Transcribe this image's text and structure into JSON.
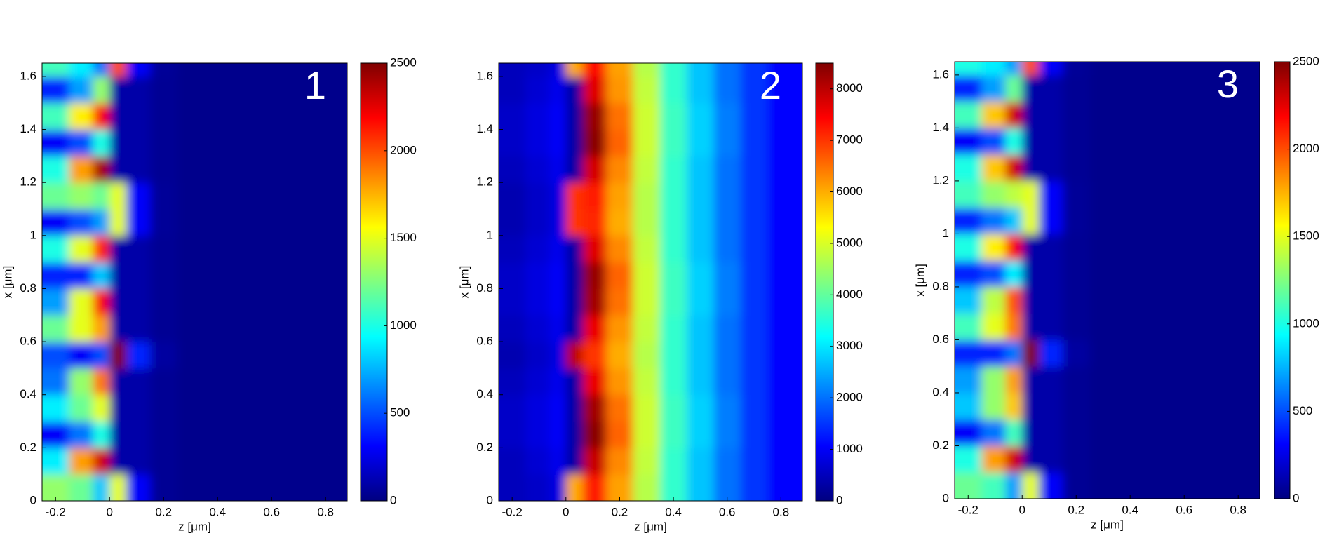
{
  "chart_data": [
    {
      "type": "heatmap",
      "colormap": "jet",
      "panel_label": "1",
      "xlabel": "z [μm]",
      "ylabel": "x [μm]",
      "xlim": [
        -0.25,
        0.88
      ],
      "xticks": [
        -0.2,
        0,
        0.2,
        0.4,
        0.6,
        0.8
      ],
      "ylim": [
        0,
        1.65
      ],
      "yticks": [
        0,
        0.2,
        0.4,
        0.6,
        0.8,
        1,
        1.2,
        1.4,
        1.6
      ],
      "clim": [
        0,
        2500
      ],
      "cticks": [
        0,
        500,
        1000,
        1500,
        2000,
        2500
      ],
      "x": [
        -0.2,
        -0.1,
        -0.025,
        0.025,
        0.1,
        0.2,
        0.3,
        0.4,
        0.5,
        0.6,
        0.7,
        0.8
      ],
      "y": [
        0.05,
        0.15,
        0.25,
        0.35,
        0.45,
        0.55,
        0.65,
        0.75,
        0.85,
        0.95,
        1.05,
        1.15,
        1.25,
        1.35,
        1.45,
        1.55,
        1.65
      ],
      "values": [
        [
          1300,
          1200,
          800,
          1500,
          300,
          50,
          30,
          30,
          30,
          30,
          30,
          30
        ],
        [
          900,
          1800,
          2300,
          100,
          100,
          50,
          30,
          30,
          30,
          30,
          30,
          30
        ],
        [
          300,
          600,
          1000,
          100,
          100,
          50,
          30,
          30,
          30,
          30,
          30,
          30
        ],
        [
          900,
          1200,
          1500,
          100,
          100,
          50,
          30,
          30,
          30,
          30,
          30,
          30
        ],
        [
          600,
          1300,
          1900,
          100,
          100,
          50,
          30,
          30,
          30,
          30,
          30,
          30
        ],
        [
          500,
          300,
          500,
          2500,
          400,
          80,
          30,
          30,
          30,
          30,
          30,
          30
        ],
        [
          1200,
          1500,
          1800,
          100,
          100,
          50,
          30,
          30,
          30,
          30,
          30,
          30
        ],
        [
          700,
          1500,
          2200,
          100,
          100,
          50,
          30,
          30,
          30,
          30,
          30,
          30
        ],
        [
          400,
          400,
          800,
          100,
          100,
          50,
          30,
          30,
          30,
          30,
          30,
          30
        ],
        [
          1000,
          1500,
          2100,
          100,
          100,
          50,
          30,
          30,
          30,
          30,
          30,
          30
        ],
        [
          300,
          500,
          700,
          1500,
          300,
          60,
          30,
          30,
          30,
          30,
          30,
          30
        ],
        [
          1200,
          1300,
          1200,
          1500,
          300,
          60,
          30,
          30,
          30,
          30,
          30,
          30
        ],
        [
          1000,
          1800,
          2400,
          100,
          100,
          50,
          30,
          30,
          30,
          30,
          30,
          30
        ],
        [
          300,
          500,
          1000,
          100,
          100,
          50,
          30,
          30,
          30,
          30,
          30,
          30
        ],
        [
          1100,
          1600,
          2200,
          100,
          100,
          50,
          30,
          30,
          30,
          30,
          30,
          30
        ],
        [
          400,
          700,
          1300,
          100,
          100,
          50,
          30,
          30,
          30,
          30,
          30,
          30
        ],
        [
          1100,
          900,
          600,
          2000,
          300,
          60,
          30,
          30,
          30,
          30,
          30,
          30
        ]
      ]
    },
    {
      "type": "heatmap",
      "colormap": "jet",
      "panel_label": "2",
      "xlabel": "z [μm]",
      "ylabel": "x [μm]",
      "xlim": [
        -0.25,
        0.88
      ],
      "xticks": [
        -0.2,
        0,
        0.2,
        0.4,
        0.6,
        0.8
      ],
      "ylim": [
        0,
        1.65
      ],
      "yticks": [
        0,
        0.2,
        0.4,
        0.6,
        0.8,
        1,
        1.2,
        1.4,
        1.6
      ],
      "clim": [
        0,
        8500
      ],
      "cticks": [
        0,
        1000,
        2000,
        3000,
        4000,
        5000,
        6000,
        7000,
        8000
      ],
      "x": [
        -0.2,
        -0.1,
        -0.025,
        0.025,
        0.1,
        0.2,
        0.3,
        0.4,
        0.5,
        0.6,
        0.7,
        0.8
      ],
      "y": [
        0.05,
        0.15,
        0.25,
        0.35,
        0.45,
        0.55,
        0.65,
        0.75,
        0.85,
        0.95,
        1.05,
        1.15,
        1.25,
        1.35,
        1.45,
        1.55,
        1.65
      ],
      "values": [
        [
          500,
          600,
          800,
          6000,
          7200,
          6100,
          4700,
          3600,
          2700,
          2000,
          1500,
          1100
        ],
        [
          500,
          700,
          900,
          300,
          7900,
          6300,
          4800,
          3600,
          2700,
          2000,
          1500,
          1100
        ],
        [
          600,
          800,
          1000,
          300,
          8400,
          6600,
          4900,
          3700,
          2800,
          2100,
          1500,
          1100
        ],
        [
          600,
          800,
          1000,
          300,
          8200,
          6500,
          4900,
          3700,
          2800,
          2100,
          1500,
          1100
        ],
        [
          500,
          700,
          900,
          300,
          7600,
          6200,
          4800,
          3600,
          2700,
          2000,
          1500,
          1100
        ],
        [
          400,
          600,
          800,
          8000,
          7000,
          6000,
          4700,
          3600,
          2700,
          2000,
          1500,
          1100
        ],
        [
          500,
          700,
          900,
          300,
          7600,
          6200,
          4800,
          3600,
          2700,
          2000,
          1500,
          1100
        ],
        [
          600,
          800,
          1000,
          300,
          8200,
          6500,
          4900,
          3700,
          2800,
          2100,
          1500,
          1100
        ],
        [
          600,
          800,
          1000,
          300,
          8300,
          6600,
          4900,
          3700,
          2800,
          2100,
          1500,
          1100
        ],
        [
          500,
          700,
          900,
          300,
          7700,
          6300,
          4800,
          3600,
          2700,
          2000,
          1500,
          1100
        ],
        [
          400,
          600,
          800,
          7000,
          7100,
          6000,
          4700,
          3600,
          2700,
          2000,
          1500,
          1100
        ],
        [
          400,
          600,
          800,
          7000,
          7200,
          6100,
          4700,
          3600,
          2700,
          2000,
          1500,
          1100
        ],
        [
          500,
          700,
          900,
          300,
          7800,
          6300,
          4800,
          3600,
          2700,
          2000,
          1500,
          1100
        ],
        [
          600,
          800,
          1000,
          300,
          8400,
          6600,
          4900,
          3700,
          2800,
          2100,
          1500,
          1100
        ],
        [
          600,
          800,
          1000,
          300,
          8300,
          6500,
          4900,
          3700,
          2800,
          2100,
          1500,
          1100
        ],
        [
          500,
          700,
          900,
          300,
          7700,
          6200,
          4800,
          3600,
          2700,
          2000,
          1500,
          1100
        ],
        [
          500,
          600,
          800,
          6000,
          7300,
          6100,
          4700,
          3600,
          2700,
          2000,
          1500,
          1100
        ]
      ]
    },
    {
      "type": "heatmap",
      "colormap": "jet",
      "panel_label": "3",
      "xlabel": "z [μm]",
      "ylabel": "x [μm]",
      "xlim": [
        -0.25,
        0.88
      ],
      "xticks": [
        -0.2,
        0,
        0.2,
        0.4,
        0.6,
        0.8
      ],
      "ylim": [
        0,
        1.65
      ],
      "yticks": [
        0,
        0.2,
        0.4,
        0.6,
        0.8,
        1,
        1.2,
        1.4,
        1.6
      ],
      "clim": [
        0,
        2500
      ],
      "cticks": [
        0,
        500,
        1000,
        1500,
        2000,
        2500
      ],
      "x": [
        -0.2,
        -0.1,
        -0.025,
        0.025,
        0.1,
        0.2,
        0.3,
        0.4,
        0.5,
        0.6,
        0.7,
        0.8
      ],
      "y": [
        0.05,
        0.15,
        0.25,
        0.35,
        0.45,
        0.55,
        0.65,
        0.75,
        0.85,
        0.95,
        1.05,
        1.15,
        1.25,
        1.35,
        1.45,
        1.55,
        1.65
      ],
      "values": [
        [
          1200,
          1100,
          700,
          1500,
          300,
          50,
          30,
          30,
          30,
          30,
          30,
          30
        ],
        [
          1000,
          1800,
          2300,
          100,
          100,
          50,
          30,
          30,
          30,
          30,
          30,
          30
        ],
        [
          300,
          600,
          1100,
          100,
          100,
          50,
          30,
          30,
          30,
          30,
          30,
          30
        ],
        [
          800,
          1300,
          1700,
          100,
          100,
          50,
          30,
          30,
          30,
          30,
          30,
          30
        ],
        [
          700,
          1300,
          1800,
          100,
          100,
          50,
          30,
          30,
          30,
          30,
          30,
          30
        ],
        [
          400,
          400,
          600,
          2500,
          400,
          80,
          30,
          30,
          30,
          30,
          30,
          30
        ],
        [
          1100,
          1500,
          1900,
          100,
          100,
          50,
          30,
          30,
          30,
          30,
          30,
          30
        ],
        [
          800,
          1400,
          2000,
          100,
          100,
          50,
          30,
          30,
          30,
          30,
          30,
          30
        ],
        [
          400,
          500,
          900,
          100,
          100,
          50,
          30,
          30,
          30,
          30,
          30,
          30
        ],
        [
          1000,
          1600,
          2200,
          100,
          100,
          50,
          30,
          30,
          30,
          30,
          30,
          30
        ],
        [
          400,
          600,
          800,
          1500,
          300,
          60,
          30,
          30,
          30,
          30,
          30,
          30
        ],
        [
          1100,
          1300,
          1400,
          1500,
          300,
          60,
          30,
          30,
          30,
          30,
          30,
          30
        ],
        [
          1000,
          1700,
          2300,
          100,
          100,
          50,
          30,
          30,
          30,
          30,
          30,
          30
        ],
        [
          300,
          500,
          1000,
          100,
          100,
          50,
          30,
          30,
          30,
          30,
          30,
          30
        ],
        [
          1100,
          1700,
          2300,
          100,
          100,
          50,
          30,
          30,
          30,
          30,
          30,
          30
        ],
        [
          400,
          700,
          1200,
          100,
          100,
          50,
          30,
          30,
          30,
          30,
          30,
          30
        ],
        [
          1000,
          900,
          700,
          2000,
          300,
          60,
          30,
          30,
          30,
          30,
          30,
          30
        ]
      ]
    }
  ]
}
